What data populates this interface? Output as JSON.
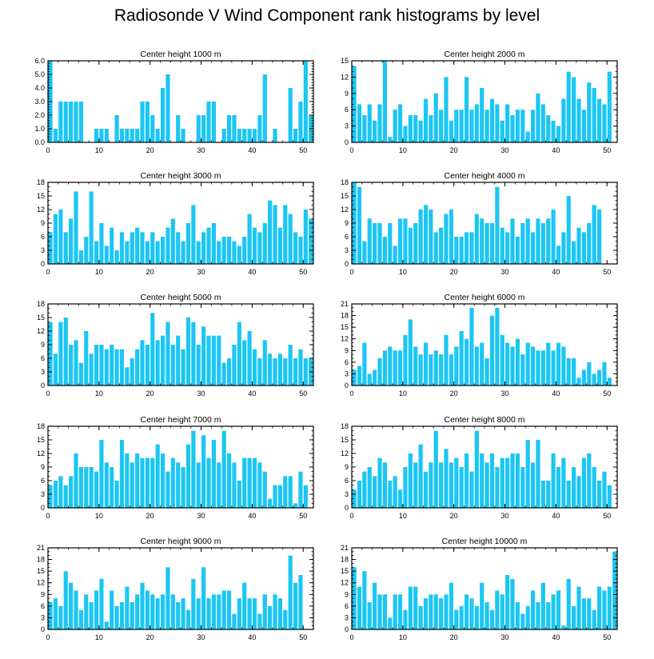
{
  "figure_title": "Radiosonde V Wind Component rank histograms by level",
  "colors": {
    "bar": "#1CC6F4",
    "axis": "#000000"
  },
  "chart_data": [
    {
      "type": "bar",
      "title": "Center height 1000 m",
      "xlim": [
        0,
        52
      ],
      "ylim": [
        0,
        6
      ],
      "yticks": [
        "0.0",
        "1.0",
        "2.0",
        "3.0",
        "4.0",
        "5.0",
        "6.0"
      ],
      "xticks": [
        "0",
        "10",
        "20",
        "30",
        "40",
        "50"
      ],
      "values": [
        6,
        1,
        3,
        3,
        3,
        3,
        3,
        0,
        0,
        1,
        1,
        1,
        0,
        2,
        1,
        1,
        1,
        1,
        3,
        3,
        2,
        1,
        4,
        5,
        0,
        2,
        1,
        0,
        0,
        2,
        2,
        3,
        3,
        0,
        1,
        2,
        2,
        1,
        1,
        1,
        1,
        2,
        5,
        0,
        1,
        0,
        0,
        4,
        1,
        3,
        6,
        2
      ]
    },
    {
      "type": "bar",
      "title": "Center height 2000 m",
      "xlim": [
        0,
        52
      ],
      "ylim": [
        0,
        15
      ],
      "yticks": [
        "0",
        "3",
        "6",
        "9",
        "12",
        "15"
      ],
      "xticks": [
        "0",
        "10",
        "20",
        "30",
        "40",
        "50"
      ],
      "values": [
        14,
        7,
        5,
        7,
        4,
        7,
        15,
        1,
        6,
        7,
        3,
        5,
        5,
        4,
        8,
        5,
        9,
        6,
        12,
        4,
        6,
        6,
        12,
        6,
        7,
        10,
        6,
        8,
        7,
        4,
        7,
        5,
        6,
        6,
        2,
        6,
        9,
        7,
        5,
        4,
        3,
        8,
        13,
        12,
        8,
        6,
        11,
        10,
        8,
        7,
        13
      ]
    },
    {
      "type": "bar",
      "title": "Center height 3000 m",
      "xlim": [
        0,
        52
      ],
      "ylim": [
        0,
        18
      ],
      "yticks": [
        "0",
        "3",
        "6",
        "9",
        "12",
        "15",
        "18"
      ],
      "xticks": [
        "0",
        "10",
        "20",
        "30",
        "40",
        "50"
      ],
      "values": [
        7,
        11,
        12,
        7,
        10,
        16,
        3,
        6,
        16,
        5,
        9,
        4,
        8,
        3,
        7,
        5,
        7,
        8,
        7,
        5,
        7,
        5,
        6,
        8,
        10,
        7,
        5,
        9,
        13,
        5,
        7,
        8,
        9,
        5,
        6,
        6,
        5,
        4,
        6,
        11,
        8,
        7,
        9,
        14,
        13,
        8,
        13,
        11,
        7,
        6,
        12,
        10
      ]
    },
    {
      "type": "bar",
      "title": "Center height 4000 m",
      "xlim": [
        0,
        52
      ],
      "ylim": [
        0,
        18
      ],
      "yticks": [
        "0",
        "3",
        "6",
        "9",
        "12",
        "15",
        "18"
      ],
      "xticks": [
        "0",
        "10",
        "20",
        "30",
        "40",
        "50"
      ],
      "values": [
        18,
        17,
        5,
        10,
        9,
        9,
        6,
        9,
        4,
        10,
        10,
        8,
        9,
        12,
        13,
        12,
        7,
        8,
        11,
        12,
        6,
        6,
        7,
        7,
        11,
        10,
        9,
        9,
        17,
        8,
        7,
        10,
        6,
        9,
        10,
        7,
        10,
        9,
        10,
        12,
        4,
        7,
        15,
        5,
        8,
        7,
        9,
        13,
        12
      ]
    },
    {
      "type": "bar",
      "title": "Center height 5000 m",
      "xlim": [
        0,
        52
      ],
      "ylim": [
        0,
        18
      ],
      "yticks": [
        "0",
        "3",
        "6",
        "9",
        "12",
        "15",
        "18"
      ],
      "xticks": [
        "0",
        "10",
        "20",
        "30",
        "40",
        "50"
      ],
      "values": [
        14,
        7,
        14,
        15,
        9,
        10,
        5,
        12,
        7,
        9,
        9,
        8,
        9,
        8,
        8,
        4,
        6,
        8,
        10,
        9,
        16,
        10,
        11,
        14,
        9,
        11,
        8,
        15,
        14,
        9,
        13,
        11,
        11,
        11,
        5,
        6,
        9,
        14,
        10,
        12,
        8,
        6,
        10,
        7,
        6,
        7,
        6,
        9,
        6,
        8,
        6,
        6
      ]
    },
    {
      "type": "bar",
      "title": "Center height 6000 m",
      "xlim": [
        0,
        52
      ],
      "ylim": [
        0,
        21
      ],
      "yticks": [
        "0",
        "3",
        "6",
        "9",
        "12",
        "15",
        "18",
        "21"
      ],
      "xticks": [
        "0",
        "10",
        "20",
        "30",
        "40",
        "50"
      ],
      "values": [
        4,
        5,
        11,
        3,
        4,
        7,
        9,
        10,
        9,
        9,
        13,
        17,
        10,
        8,
        11,
        8,
        9,
        8,
        13,
        8,
        10,
        14,
        12,
        20,
        10,
        11,
        7,
        18,
        20,
        13,
        11,
        10,
        12,
        8,
        11,
        10,
        9,
        9,
        11,
        9,
        11,
        10,
        7,
        7,
        2,
        4,
        6,
        3,
        4,
        6,
        2
      ]
    },
    {
      "type": "bar",
      "title": "Center height 7000 m",
      "xlim": [
        0,
        52
      ],
      "ylim": [
        0,
        18
      ],
      "yticks": [
        "0",
        "3",
        "6",
        "9",
        "12",
        "15",
        "18"
      ],
      "xticks": [
        "0",
        "10",
        "20",
        "30",
        "40",
        "50"
      ],
      "values": [
        5,
        6,
        7,
        5,
        7,
        12,
        9,
        9,
        9,
        8,
        15,
        10,
        9,
        6,
        15,
        12,
        10,
        12,
        11,
        11,
        11,
        14,
        12,
        8,
        11,
        10,
        9,
        14,
        17,
        10,
        16,
        11,
        15,
        10,
        17,
        12,
        10,
        6,
        11,
        11,
        11,
        10,
        8,
        2,
        5,
        5,
        7,
        7,
        1,
        8,
        5
      ]
    },
    {
      "type": "bar",
      "title": "Center height 8000 m",
      "xlim": [
        0,
        52
      ],
      "ylim": [
        0,
        18
      ],
      "yticks": [
        "0",
        "3",
        "6",
        "9",
        "12",
        "15",
        "18"
      ],
      "xticks": [
        "0",
        "10",
        "20",
        "30",
        "40",
        "50"
      ],
      "values": [
        4,
        6,
        8,
        9,
        7,
        11,
        10,
        6,
        7,
        4,
        9,
        12,
        10,
        14,
        8,
        10,
        17,
        10,
        13,
        10,
        11,
        9,
        12,
        8,
        17,
        12,
        10,
        12,
        9,
        11,
        11,
        12,
        12,
        9,
        15,
        10,
        15,
        6,
        6,
        12,
        9,
        11,
        6,
        9,
        7,
        11,
        12,
        9,
        6,
        8,
        5
      ]
    },
    {
      "type": "bar",
      "title": "Center height 9000 m",
      "xlim": [
        0,
        52
      ],
      "ylim": [
        0,
        21
      ],
      "yticks": [
        "0",
        "3",
        "6",
        "9",
        "12",
        "15",
        "18",
        "21"
      ],
      "xticks": [
        "0",
        "10",
        "20",
        "30",
        "40",
        "50"
      ],
      "values": [
        7,
        8,
        6,
        15,
        12,
        10,
        5,
        9,
        7,
        10,
        13,
        2,
        10,
        6,
        7,
        11,
        7,
        9,
        12,
        10,
        9,
        8,
        9,
        16,
        9,
        7,
        8,
        5,
        13,
        8,
        16,
        8,
        9,
        9,
        10,
        10,
        4,
        8,
        12,
        8,
        8,
        4,
        9,
        6,
        9,
        8,
        5,
        19,
        12,
        14
      ]
    },
    {
      "type": "bar",
      "title": "Center height 10000 m",
      "xlim": [
        0,
        52
      ],
      "ylim": [
        0,
        21
      ],
      "yticks": [
        "0",
        "3",
        "6",
        "9",
        "12",
        "15",
        "18",
        "21"
      ],
      "xticks": [
        "0",
        "10",
        "20",
        "30",
        "40",
        "50"
      ],
      "values": [
        16,
        11,
        15,
        7,
        12,
        9,
        9,
        3,
        9,
        9,
        5,
        11,
        11,
        6,
        8,
        9,
        9,
        8,
        9,
        12,
        5,
        6,
        9,
        8,
        6,
        12,
        7,
        5,
        10,
        9,
        14,
        13,
        7,
        4,
        6,
        10,
        7,
        12,
        7,
        9,
        10,
        1,
        13,
        6,
        11,
        8,
        8,
        5,
        11,
        10,
        11,
        20
      ]
    }
  ]
}
